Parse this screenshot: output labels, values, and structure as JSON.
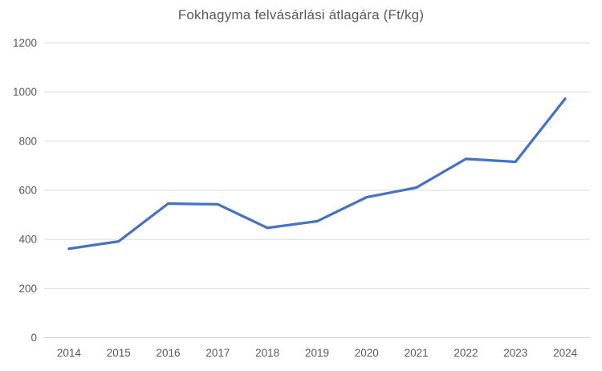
{
  "page": {
    "background_color": "#ffffff"
  },
  "chart_data": {
    "type": "line",
    "title": "Fokhagyma felvásárlási átlagára (Ft/kg)",
    "categories": [
      "2014",
      "2015",
      "2016",
      "2017",
      "2018",
      "2019",
      "2020",
      "2021",
      "2022",
      "2023",
      "2024"
    ],
    "series": [
      {
        "name": "Fokhagyma felvásárlási átlagára",
        "values": [
          362,
          392,
          546,
          543,
          447,
          474,
          572,
          611,
          728,
          716,
          973
        ]
      }
    ],
    "xlabel": "",
    "ylabel": "",
    "ylim": [
      0,
      1200
    ],
    "yticks": [
      0,
      200,
      400,
      600,
      800,
      1000,
      1200
    ],
    "grid": true,
    "legend_position": "none",
    "colors": {
      "line": "#4472C4",
      "gridline": "#D9D9D9",
      "axis_line": "#D0D0D0",
      "tick_label": "#595959",
      "title": "#595959"
    }
  }
}
